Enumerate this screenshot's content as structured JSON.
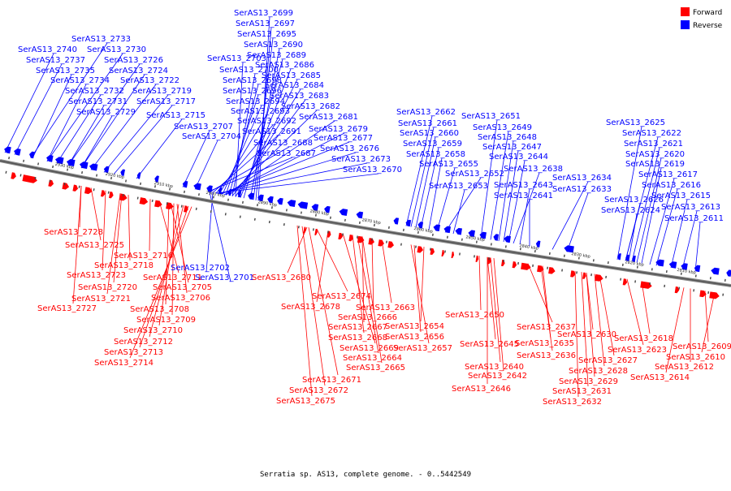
{
  "legend": {
    "forward": {
      "label": "Forward",
      "color": "#ff0000"
    },
    "reverse": {
      "label": "Reverse",
      "color": "#0000ff"
    }
  },
  "caption": "Serratia sp. AS13, complete genome. - 0..5442549",
  "ticks": [
    "2930 kbp",
    "2920 kbp",
    "2910 kbp",
    "2900 kbp",
    "2890 kbp",
    "2880 kbp",
    "2870 kbp",
    "2860 kbp",
    "2850 kbp",
    "2840 kbp",
    "2830 kbp",
    "2820 kbp",
    "2810 kbp"
  ],
  "reverse_labels": [
    "SerAS13_2699",
    "SerAS13_2697",
    "SerAS13_2695",
    "SerAS13_2733",
    "SerAS13_2690",
    "SerAS13_2740",
    "SerAS13_2730",
    "SerAS13_2689",
    "SerAS13_2737",
    "SerAS13_2726",
    "SerAS13_2703",
    "SerAS13_2686",
    "SerAS13_2724",
    "SerAS13_2700",
    "SerAS13_2735",
    "SerAS13_2685",
    "SerAS13_2734",
    "SerAS13_2722",
    "SerAS13_2698",
    "SerAS13_2684",
    "SerAS13_2732",
    "SerAS13_2719",
    "SerAS13_2696",
    "SerAS13_2683",
    "SerAS13_2731",
    "SerAS13_2717",
    "SerAS13_2694",
    "SerAS13_2682",
    "SerAS13_2729",
    "SerAS13_2693",
    "SerAS13_2662",
    "SerAS13_2651",
    "SerAS13_2715",
    "SerAS13_2681",
    "SerAS13_2692",
    "SerAS13_2625",
    "SerAS13_2661",
    "SerAS13_2649",
    "SerAS13_2707",
    "SerAS13_2679",
    "SerAS13_2691",
    "SerAS13_2660",
    "SerAS13_2622",
    "SerAS13_2648",
    "SerAS13_2704",
    "SerAS13_2677",
    "SerAS13_2688",
    "SerAS13_2659",
    "SerAS13_2621",
    "SerAS13_2647",
    "SerAS13_2676",
    "SerAS13_2687",
    "SerAS13_2658",
    "SerAS13_2620",
    "SerAS13_2644",
    "SerAS13_2673",
    "SerAS13_2655",
    "SerAS13_2619",
    "SerAS13_2638",
    "SerAS13_2670",
    "SerAS13_2652",
    "SerAS13_2617",
    "SerAS13_2634",
    "SerAS13_2643",
    "SerAS13_2616",
    "SerAS13_2653",
    "SerAS13_2633",
    "SerAS13_2641",
    "SerAS13_2615",
    "SerAS13_2626",
    "SerAS13_2613",
    "SerAS13_2624",
    "SerAS13_2611",
    "SerAS13_2702",
    "SerAS13_2701"
  ],
  "forward_labels": [
    "SerAS13_2728",
    "SerAS13_2725",
    "SerAS13_2716",
    "SerAS13_2718",
    "SerAS13_2711",
    "SerAS13_2723",
    "SerAS13_2705",
    "SerAS13_2720",
    "SerAS13_2706",
    "SerAS13_2721",
    "SerAS13_2708",
    "SerAS13_2727",
    "SerAS13_2709",
    "SerAS13_2710",
    "SerAS13_2712",
    "SerAS13_2713",
    "SerAS13_2714",
    "SerAS13_2680",
    "SerAS13_2674",
    "SerAS13_2678",
    "SerAS13_2663",
    "SerAS13_2666",
    "SerAS13_2650",
    "SerAS13_2667",
    "SerAS13_2654",
    "SerAS13_2637",
    "SerAS13_2668",
    "SerAS13_2656",
    "SerAS13_2630",
    "SerAS13_2618",
    "SerAS13_2669",
    "SerAS13_2657",
    "SerAS13_2645",
    "SerAS13_2635",
    "SerAS13_2609",
    "SerAS13_2623",
    "SerAS13_2664",
    "SerAS13_2636",
    "SerAS13_2610",
    "SerAS13_2627",
    "SerAS13_2665",
    "SerAS13_2640",
    "SerAS13_2612",
    "SerAS13_2628",
    "SerAS13_2642",
    "SerAS13_2614",
    "SerAS13_2671",
    "SerAS13_2629",
    "SerAS13_2646",
    "SerAS13_2672",
    "SerAS13_2631",
    "SerAS13_2675",
    "SerAS13_2632"
  ]
}
